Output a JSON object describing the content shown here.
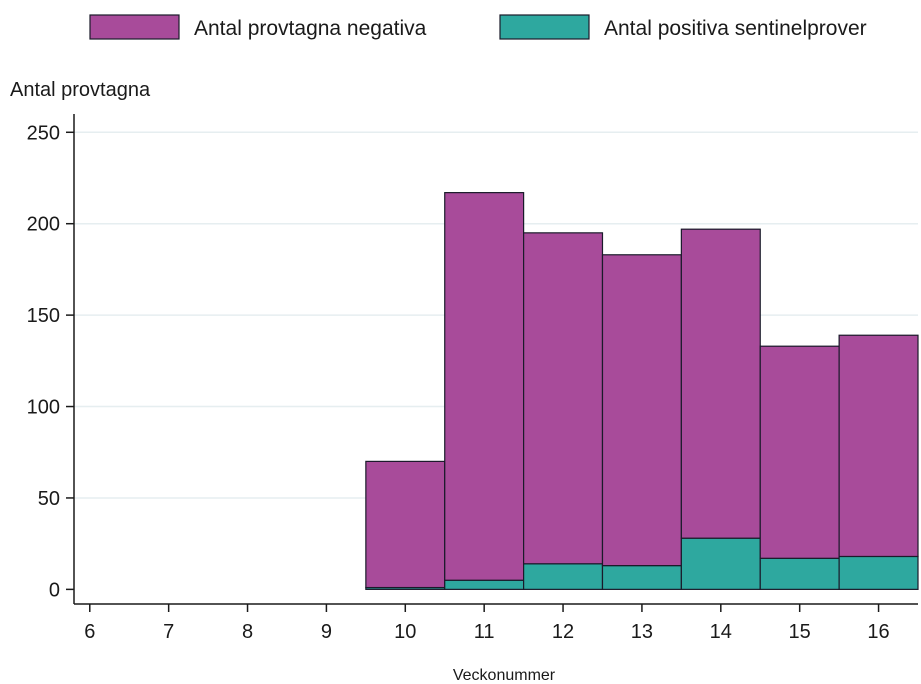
{
  "chart_data": {
    "type": "bar",
    "stacked": true,
    "ylabel": "Antal provtagna",
    "xlabel": "Veckonummer",
    "x_ticks": [
      6,
      7,
      8,
      9,
      10,
      11,
      12,
      13,
      14,
      15,
      16
    ],
    "xlim": [
      5.8,
      16.5
    ],
    "ylim": [
      -8,
      260
    ],
    "y_ticks": [
      0,
      50,
      100,
      150,
      200,
      250
    ],
    "grid": true,
    "legend_position": "top",
    "categories": [
      10,
      11,
      12,
      13,
      14,
      15,
      16
    ],
    "series": [
      {
        "name": "Antal positiva sentinelprover",
        "color": "#2ea89f",
        "values": [
          1,
          5,
          14,
          13,
          28,
          17,
          18
        ]
      },
      {
        "name": "Antal provtagna negativa",
        "color": "#a84b9a",
        "values": [
          69,
          212,
          181,
          170,
          169,
          116,
          121
        ]
      }
    ]
  }
}
